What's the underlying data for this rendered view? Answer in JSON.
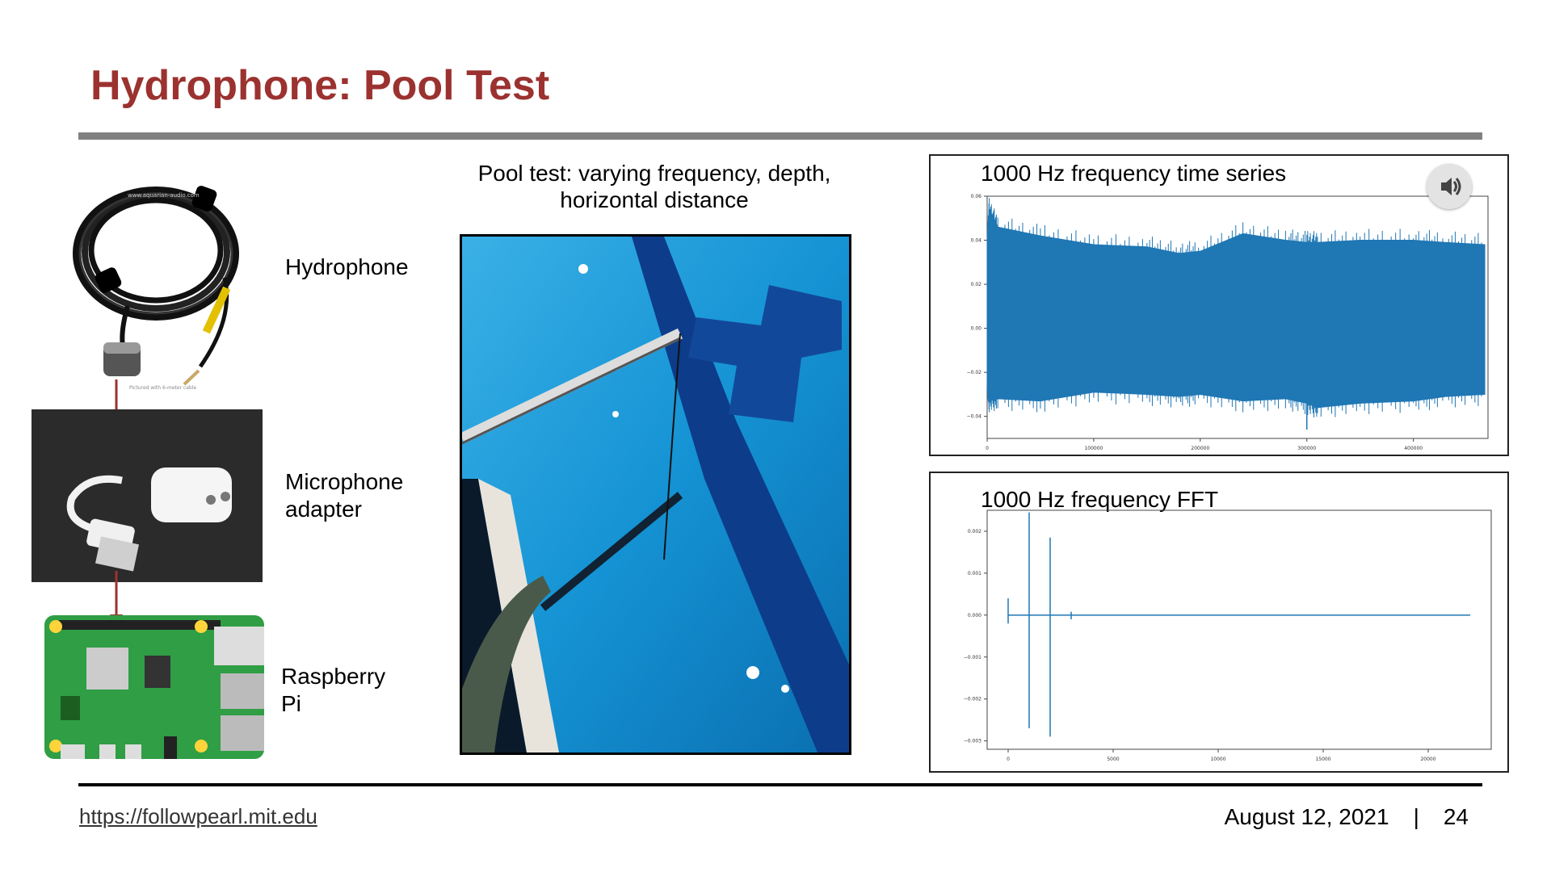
{
  "slide": {
    "title": "Hydrophone: Pool Test",
    "caption_line1": "Pool test: varying frequency, depth,",
    "caption_line2": "horizontal distance"
  },
  "components": {
    "hydrophone": "Hydrophone",
    "mic_line1": "Microphone",
    "mic_line2": "adapter",
    "pi_line1": "Raspberry",
    "pi_line2": "Pi",
    "hydrophone_url": "www.aquarian-audio.com",
    "hydrophone_note": "Pictured with 6-meter cable"
  },
  "footer": {
    "url": "https://followpearl.mit.edu",
    "date": "August 12, 2021",
    "separator": "|",
    "page": "24"
  },
  "colors": {
    "title": "#9b3230",
    "series": "#1f77b4",
    "arrow": "#9b3230"
  },
  "icons": {
    "speaker": "speaker-volume-icon"
  },
  "chart_data": [
    {
      "type": "line",
      "title": "1000 Hz frequency time series",
      "xlim": [
        0,
        470000
      ],
      "ylim": [
        -0.05,
        0.06
      ],
      "xticks": [
        0,
        100000,
        200000,
        300000,
        400000
      ],
      "xtick_labels": [
        "0",
        "100000",
        "200000",
        "300000",
        "400000"
      ],
      "yticks": [
        0.06,
        0.04,
        0.02,
        0.0,
        -0.02,
        -0.04
      ],
      "ytick_labels": [
        "0.06",
        "0.04",
        "0.02",
        "0.00",
        "−0.02",
        "−0.04"
      ],
      "series": [
        {
          "x": [
            0,
            2000,
            10000,
            50000,
            100000,
            150000,
            180000,
            200000,
            240000,
            280000,
            300000,
            310000,
            350000,
            400000,
            430000,
            467000
          ],
          "upper": [
            0.04,
            0.054,
            0.046,
            0.042,
            0.038,
            0.037,
            0.034,
            0.035,
            0.043,
            0.04,
            0.039,
            0.039,
            0.04,
            0.04,
            0.039,
            0.038
          ],
          "lower": [
            -0.025,
            -0.033,
            -0.032,
            -0.033,
            -0.029,
            -0.03,
            -0.031,
            -0.03,
            -0.033,
            -0.032,
            -0.034,
            -0.036,
            -0.034,
            -0.033,
            -0.031,
            -0.03
          ]
        }
      ],
      "grid": false
    },
    {
      "type": "line",
      "title": "1000 Hz frequency FFT",
      "xlim": [
        -1000,
        23000
      ],
      "ylim": [
        -0.0032,
        0.0025
      ],
      "xticks": [
        0,
        5000,
        10000,
        15000,
        20000
      ],
      "xtick_labels": [
        "0",
        "5000",
        "10000",
        "15000",
        "20000"
      ],
      "yticks": [
        0.002,
        0.001,
        0.0,
        -0.001,
        -0.002,
        -0.003
      ],
      "ytick_labels": [
        "0.002",
        "0.001",
        "0.000",
        "−0.001",
        "−0.002",
        "−0.003"
      ],
      "spikes": [
        {
          "x": 0,
          "max": 0.0004,
          "min": -0.0002
        },
        {
          "x": 1000,
          "max": 0.00245,
          "min": -0.0027
        },
        {
          "x": 2000,
          "max": 0.00185,
          "min": -0.0029
        },
        {
          "x": 3000,
          "max": 8e-05,
          "min": -0.0001
        }
      ],
      "baseline_x": [
        0,
        22000
      ],
      "grid": false
    }
  ]
}
